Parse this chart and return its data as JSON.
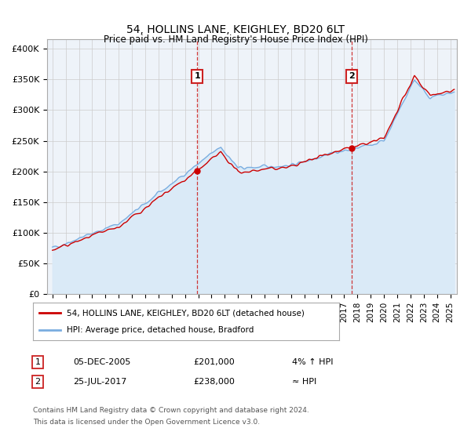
{
  "title": "54, HOLLINS LANE, KEIGHLEY, BD20 6LT",
  "subtitle": "Price paid vs. HM Land Registry's House Price Index (HPI)",
  "ylabel_ticks": [
    "£0",
    "£50K",
    "£100K",
    "£150K",
    "£200K",
    "£250K",
    "£300K",
    "£350K",
    "£400K"
  ],
  "ytick_values": [
    0,
    50000,
    100000,
    150000,
    200000,
    250000,
    300000,
    350000,
    400000
  ],
  "ylim": [
    0,
    415000
  ],
  "xlim_start": 1994.6,
  "xlim_end": 2025.5,
  "xtick_years": [
    1995,
    1996,
    1997,
    1998,
    1999,
    2000,
    2001,
    2002,
    2003,
    2004,
    2005,
    2006,
    2007,
    2008,
    2009,
    2010,
    2011,
    2012,
    2013,
    2014,
    2015,
    2016,
    2017,
    2018,
    2019,
    2020,
    2021,
    2022,
    2023,
    2024,
    2025
  ],
  "sale1_x": 2005.92,
  "sale1_y": 201000,
  "sale1_label": "1",
  "sale1_date": "05-DEC-2005",
  "sale1_price": "£201,000",
  "sale1_hpi": "4% ↑ HPI",
  "sale2_x": 2017.56,
  "sale2_y": 238000,
  "sale2_label": "2",
  "sale2_date": "25-JUL-2017",
  "sale2_price": "£238,000",
  "sale2_hpi": "≈ HPI",
  "line_color_sale": "#cc0000",
  "line_color_hpi": "#7aade0",
  "fill_color_hpi": "#daeaf7",
  "background_color": "#eef3f9",
  "grid_color": "#cccccc",
  "annotation_box_color": "#cc2222",
  "legend_line1": "54, HOLLINS LANE, KEIGHLEY, BD20 6LT (detached house)",
  "legend_line2": "HPI: Average price, detached house, Bradford",
  "footer1": "Contains HM Land Registry data © Crown copyright and database right 2024.",
  "footer2": "This data is licensed under the Open Government Licence v3.0."
}
